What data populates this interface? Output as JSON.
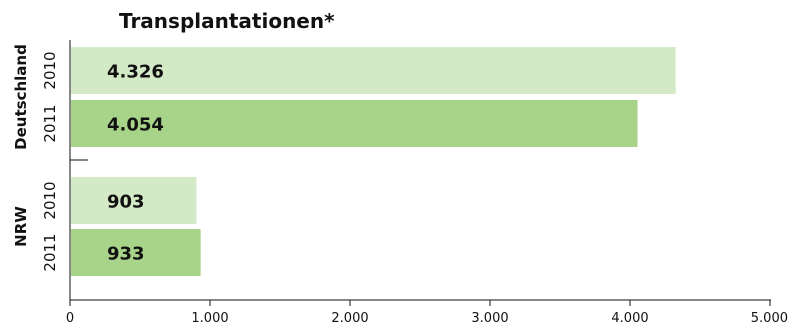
{
  "chart_data": {
    "type": "bar",
    "orientation": "horizontal",
    "title": "Transplantationen*",
    "xlim": [
      0,
      5000
    ],
    "x_ticks": [
      0,
      1000,
      2000,
      3000,
      4000,
      5000
    ],
    "x_tick_labels": [
      "0",
      "1.000",
      "2.000",
      "3.000",
      "4.000",
      "5.000"
    ],
    "grid": false,
    "colors": {
      "2010": "#d4e9c6",
      "2011": "#a8d48a"
    },
    "groups": [
      {
        "name": "Deutschland",
        "bars": [
          {
            "year": "2010",
            "value": 4326,
            "label": "4.326"
          },
          {
            "year": "2011",
            "value": 4054,
            "label": "4.054"
          }
        ]
      },
      {
        "name": "NRW",
        "bars": [
          {
            "year": "2010",
            "value": 903,
            "label": "903"
          },
          {
            "year": "2011",
            "value": 933,
            "label": "933"
          }
        ]
      }
    ]
  }
}
